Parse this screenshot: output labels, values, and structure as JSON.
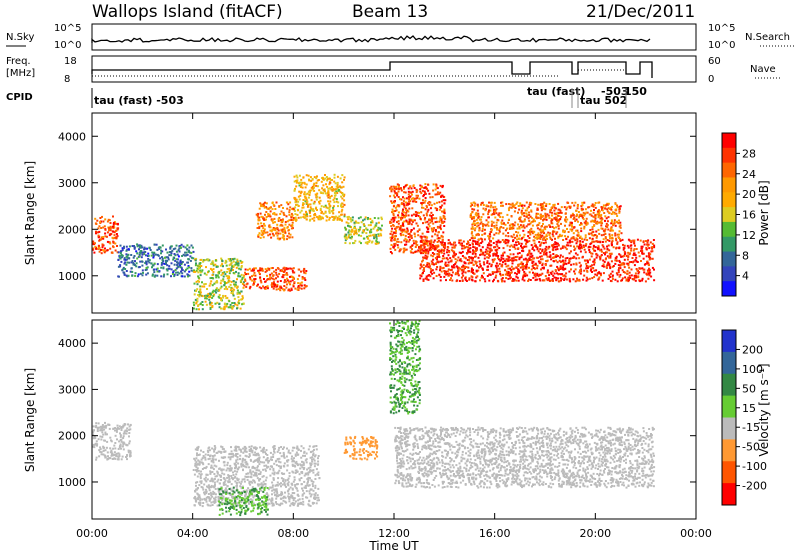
{
  "header": {
    "site": "Wallops Island (fitACF)",
    "beam": "Beam 13",
    "date": "21/Dec/2011"
  },
  "strips": {
    "nsky_label": "N.Sky",
    "nsky_ticks": [
      "10^5",
      "10^0"
    ],
    "nsky_right_ticks": [
      "10^5",
      "10^0"
    ],
    "nsearch_label": "N.Search",
    "freq_label": "Freq.",
    "freq_unit": "[MHz]",
    "freq_ticks": [
      "18",
      "8"
    ],
    "nave_ticks": [
      "60",
      "0"
    ],
    "nave_label": "Nave",
    "cpid_label": "CPID",
    "cpid_entries": [
      "tau (fast) -503",
      "tau (fast)",
      "tau 502",
      "-503",
      "150"
    ]
  },
  "axes": {
    "x_label": "Time UT",
    "x_ticks": [
      "00:00",
      "04:00",
      "08:00",
      "12:00",
      "16:00",
      "20:00",
      "00:00"
    ],
    "y_label": "Slant Range [km]",
    "y_ticks": [
      "1000",
      "2000",
      "3000",
      "4000"
    ],
    "y_range": [
      200,
      4500
    ],
    "x_range_hours": [
      0,
      24
    ]
  },
  "colorbars": {
    "power": {
      "label": "Power [dB]",
      "ticks": [
        "28",
        "24",
        "20",
        "16",
        "12",
        "8",
        "4"
      ],
      "colors": [
        "#ff0000",
        "#ff3300",
        "#ff6600",
        "#ff9900",
        "#ffaa00",
        "#ddcc22",
        "#55bb33",
        "#339966",
        "#336699",
        "#3344bb",
        "#1111ff"
      ]
    },
    "velocity": {
      "label": "Velocity [m s⁻¹]",
      "ticks": [
        "200",
        "100",
        "50",
        "15",
        "-15",
        "-50",
        "-100",
        "-200"
      ],
      "colors": [
        "#2233cc",
        "#336699",
        "#338844",
        "#66cc33",
        "#bbbbbb",
        "#ff9933",
        "#ff5500",
        "#ff0000"
      ]
    }
  },
  "chart_data": {
    "type": "heatmap",
    "panels": [
      {
        "name": "Power",
        "xlabel": "Time UT",
        "ylabel": "Slant Range [km]",
        "colorbar_label": "Power [dB]",
        "regions": [
          {
            "t0": 0.0,
            "t1": 1.0,
            "r0": 1500,
            "r1": 2300,
            "level": 26
          },
          {
            "t0": 1.0,
            "t1": 4.0,
            "r0": 1000,
            "r1": 1700,
            "level": 6
          },
          {
            "t0": 4.0,
            "t1": 6.0,
            "r0": 300,
            "r1": 1400,
            "level": 14
          },
          {
            "t0": 6.0,
            "t1": 8.5,
            "r0": 700,
            "r1": 1200,
            "level": 26
          },
          {
            "t0": 6.5,
            "t1": 8.0,
            "r0": 1800,
            "r1": 2600,
            "level": 22
          },
          {
            "t0": 8.0,
            "t1": 10.0,
            "r0": 2200,
            "r1": 3200,
            "level": 18
          },
          {
            "t0": 10.0,
            "t1": 11.5,
            "r0": 1700,
            "r1": 2300,
            "level": 14
          },
          {
            "t0": 11.8,
            "t1": 14.0,
            "r0": 1500,
            "r1": 3000,
            "level": 26
          },
          {
            "t0": 13.0,
            "t1": 22.3,
            "r0": 900,
            "r1": 1800,
            "level": 28
          },
          {
            "t0": 15.0,
            "t1": 21.0,
            "r0": 1800,
            "r1": 2600,
            "level": 24
          }
        ]
      },
      {
        "name": "Velocity",
        "xlabel": "Time UT",
        "ylabel": "Slant Range [km]",
        "colorbar_label": "Velocity [m s⁻¹]",
        "regions": [
          {
            "t0": 0.0,
            "t1": 1.5,
            "r0": 1500,
            "r1": 2300,
            "level": 0
          },
          {
            "t0": 4.0,
            "t1": 9.0,
            "r0": 500,
            "r1": 1800,
            "level": 0
          },
          {
            "t0": 5.0,
            "t1": 7.0,
            "r0": 300,
            "r1": 900,
            "level": 30
          },
          {
            "t0": 10.0,
            "t1": 11.3,
            "r0": 1500,
            "r1": 2000,
            "level": -40
          },
          {
            "t0": 11.8,
            "t1": 13.0,
            "r0": 2500,
            "r1": 4500,
            "level": 30
          },
          {
            "t0": 12.0,
            "t1": 22.3,
            "r0": 900,
            "r1": 2200,
            "level": 0
          }
        ]
      }
    ]
  }
}
